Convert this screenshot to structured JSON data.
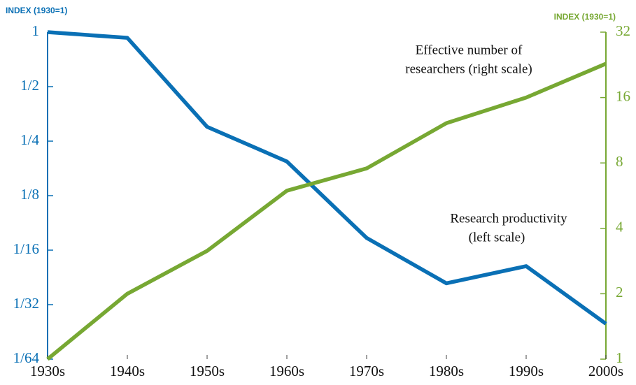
{
  "chart_data": {
    "type": "line",
    "y_axis_label": "INDEX (1930=1)",
    "y2_axis_label": "INDEX (1930=1)",
    "categories": [
      "1930s",
      "1940s",
      "1950s",
      "1960s",
      "1970s",
      "1980s",
      "1990s",
      "2000s"
    ],
    "series": [
      {
        "name": "Research productivity",
        "color": "#0a70b5",
        "values": [
          1,
          0.93,
          0.3,
          0.193,
          0.073,
          0.041,
          0.051,
          0.0245
        ]
      },
      {
        "name": "Effective number of researchers",
        "color": "#77a833",
        "axis": "y2",
        "values": [
          1,
          2,
          3.15,
          5.96,
          7.55,
          12.2,
          16,
          22.9
        ]
      }
    ],
    "yscale": "log",
    "y2scale": "log",
    "ylim": [
      0.015625,
      1
    ],
    "yticks": [
      1,
      {
        "value": 0.5,
        "label": "1/2"
      },
      {
        "value": 0.25,
        "label": "1/4"
      },
      {
        "value": 0.125,
        "label": "1/8"
      },
      {
        "value": 0.0625,
        "label": "1/16"
      },
      {
        "value": 0.03125,
        "label": "1/32"
      },
      {
        "value": 0.015625,
        "label": "1/64"
      }
    ],
    "y2lim": [
      1,
      32
    ],
    "y2ticks": [
      1,
      2,
      4,
      8,
      16,
      32
    ],
    "annotations": [
      {
        "lines": [
          "Effective number of",
          "researchers (right scale)"
        ]
      },
      {
        "lines": [
          "Research productivity",
          "(left scale)"
        ]
      }
    ]
  }
}
